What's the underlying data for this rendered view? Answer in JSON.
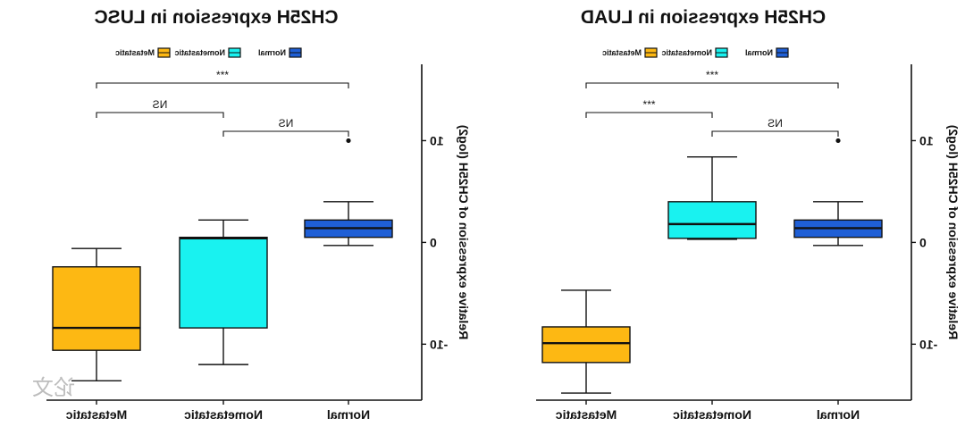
{
  "colors": {
    "Metastatic": "#fdb813",
    "Nometastatic": "#19f2f0",
    "Normal": "#1f5fd6",
    "axis": "#111111"
  },
  "chart_data": [
    {
      "type": "box",
      "title": "CH25H expression in LUAD",
      "ylabel": "Relative expression of CH25H (log2)",
      "xlabel": "",
      "ylim": [
        -15.5,
        17.5
      ],
      "yticks": [
        -10,
        0,
        10
      ],
      "ytick_labels": [
        "-10",
        "0",
        "10"
      ],
      "categories": [
        "Normal",
        "Nometastatic",
        "Metastatic"
      ],
      "legend": [
        "Normal",
        "Nometastatic",
        "Metastatic"
      ],
      "legend_position": "top",
      "grid": false,
      "boxes": [
        {
          "group": "Normal",
          "whisker_low": -0.3,
          "q1": 0.5,
          "median": 1.4,
          "q3": 2.2,
          "whisker_high": 4.0,
          "outliers": [
            10.0
          ]
        },
        {
          "group": "Nometastatic",
          "whisker_low": 0.3,
          "q1": 0.4,
          "median": 1.8,
          "q3": 4.0,
          "whisker_high": 8.4,
          "outliers": []
        },
        {
          "group": "Metastatic",
          "whisker_low": -14.8,
          "q1": -11.8,
          "median": -9.9,
          "q3": -8.3,
          "whisker_high": -4.7,
          "outliers": []
        }
      ],
      "comparisons": [
        {
          "groups": [
            "Normal",
            "Nometastatic"
          ],
          "label": "NS"
        },
        {
          "groups": [
            "Nometastatic",
            "Metastatic"
          ],
          "label": "***"
        },
        {
          "groups": [
            "Normal",
            "Metastatic"
          ],
          "label": "***"
        }
      ]
    },
    {
      "type": "box",
      "title": "CH25H expression in LUSC",
      "ylabel": "Relative expression of CH25H (log2)",
      "xlabel": "",
      "ylim": [
        -15.5,
        17.5
      ],
      "yticks": [
        -10,
        0,
        10
      ],
      "ytick_labels": [
        "-10",
        "0",
        "10"
      ],
      "categories": [
        "Normal",
        "Nometastatic",
        "Metastatic"
      ],
      "legend": [
        "Normal",
        "Nometastatic",
        "Metastatic"
      ],
      "legend_position": "top",
      "grid": false,
      "boxes": [
        {
          "group": "Normal",
          "whisker_low": -0.3,
          "q1": 0.5,
          "median": 1.4,
          "q3": 2.2,
          "whisker_high": 4.0,
          "outliers": [
            10.0
          ]
        },
        {
          "group": "Nometastatic",
          "whisker_low": -12.0,
          "q1": -8.4,
          "median": 0.4,
          "q3": 0.5,
          "whisker_high": 2.2,
          "outliers": []
        },
        {
          "group": "Metastatic",
          "whisker_low": -13.6,
          "q1": -10.6,
          "median": -8.4,
          "q3": -2.4,
          "whisker_high": -0.6,
          "outliers": []
        }
      ],
      "comparisons": [
        {
          "groups": [
            "Normal",
            "Nometastatic"
          ],
          "label": "NS"
        },
        {
          "groups": [
            "Nometastatic",
            "Metastatic"
          ],
          "label": "NS"
        },
        {
          "groups": [
            "Normal",
            "Metastatic"
          ],
          "label": "***"
        }
      ]
    }
  ],
  "watermark": "论文"
}
